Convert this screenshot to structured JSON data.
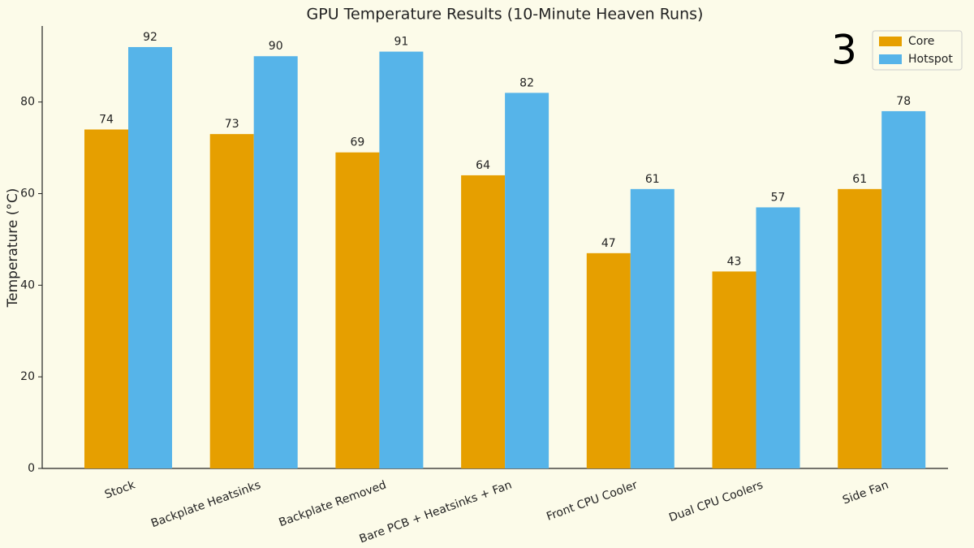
{
  "chart_data": {
    "type": "bar",
    "title": "GPU Temperature Results (10-Minute Heaven Runs)",
    "badge": "3",
    "ylabel": "Temperature (°C)",
    "categories": [
      "Stock",
      "Backplate Heatsinks",
      "Backplate Removed",
      "Bare PCB + Heatsinks + Fan",
      "Front CPU Cooler",
      "Dual CPU Coolers",
      "Side Fan"
    ],
    "series": [
      {
        "name": "Core",
        "color": "#e69f00",
        "values": [
          74,
          73,
          69,
          64,
          47,
          43,
          61
        ]
      },
      {
        "name": "Hotspot",
        "color": "#56b4e9",
        "values": [
          92,
          90,
          91,
          82,
          61,
          57,
          78
        ]
      }
    ],
    "ylim": [
      0,
      96.6
    ],
    "yticks": [
      0,
      20,
      40,
      60,
      80
    ],
    "legend": "upper right"
  }
}
